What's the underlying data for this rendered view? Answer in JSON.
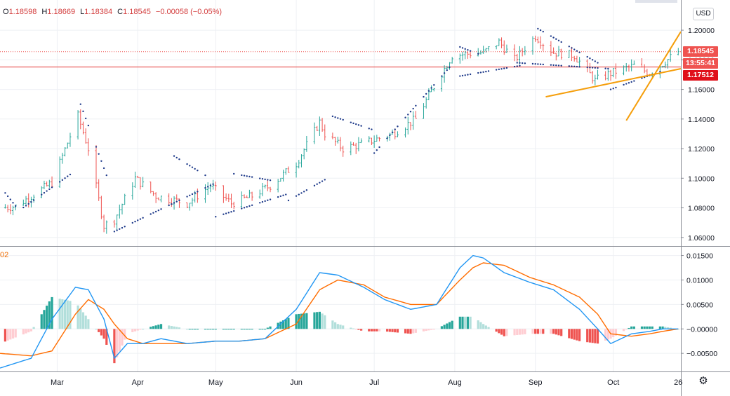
{
  "ohlc": {
    "open_label": "O",
    "open": "1.18598",
    "high_label": "H",
    "high": "1.18669",
    "low_label": "L",
    "low": "1.18384",
    "close_label": "C",
    "close": "1.18545",
    "change": "−0.00058 (−0.05%)"
  },
  "currency_button": "USD",
  "macd_pane_label": "02",
  "price_scale": {
    "ticks": [
      "1.20000",
      "1.18000",
      "1.16000",
      "1.14000",
      "1.12000",
      "1.10000",
      "1.08000",
      "1.06000"
    ],
    "tick_values": [
      1.2,
      1.18,
      1.16,
      1.14,
      1.12,
      1.1,
      1.08,
      1.06
    ],
    "ylim": [
      1.0547,
      1.2166
    ]
  },
  "price_tags": {
    "last_price": "1.18545",
    "countdown": "13:55:41",
    "horizontal_line": "1.17512"
  },
  "macd_scale": {
    "ticks": [
      "0.01500",
      "0.01000",
      "0.00500",
      "−0.00000",
      "−0.00500"
    ],
    "tick_values": [
      0.015,
      0.01,
      0.005,
      0.0,
      -0.005
    ],
    "ylim": [
      -0.0087,
      0.0168
    ]
  },
  "time_axis": {
    "labels": [
      "Mar",
      "Apr",
      "May",
      "Jun",
      "Jul",
      "Aug",
      "Sep",
      "Oct",
      "26"
    ],
    "label_dates": [
      "2020-03-01",
      "2020-04-01",
      "2020-05-01",
      "2020-06-01",
      "2020-07-01",
      "2020-08-01",
      "2020-09-01",
      "2020-10-01",
      "2020-10-26"
    ],
    "xlim": [
      "2020-02-08",
      "2020-10-27"
    ]
  },
  "colors": {
    "up": "#26a69a",
    "down": "#ef5350",
    "macd_line": "#2196f3",
    "signal_line": "#ff6d00",
    "sar": "#1e3a8a",
    "trendline": "#f59e0b",
    "hline": "#e53935",
    "hist_up_strong": "#26a69a",
    "hist_up_weak": "#b2dfdb",
    "hist_down_strong": "#ef5350",
    "hist_down_weak": "#ffcdd2"
  },
  "chart_data": {
    "type": "candlestick",
    "instrument_quote": "USD",
    "series": [
      {
        "name": "price_path",
        "x": [
          "2020-02-08",
          "2020-02-14",
          "2020-02-20",
          "2020-02-28",
          "2020-03-09",
          "2020-03-13",
          "2020-03-19",
          "2020-03-23",
          "2020-03-31",
          "2020-04-08",
          "2020-04-20",
          "2020-04-29",
          "2020-05-07",
          "2020-05-15",
          "2020-05-22",
          "2020-06-01",
          "2020-06-10",
          "2020-06-12",
          "2020-06-19",
          "2020-06-26",
          "2020-07-08",
          "2020-07-17",
          "2020-07-24",
          "2020-07-31",
          "2020-08-12",
          "2020-08-18",
          "2020-08-24",
          "2020-09-01",
          "2020-09-08",
          "2020-09-16",
          "2020-09-24",
          "2020-09-30",
          "2020-10-09",
          "2020-10-15",
          "2020-10-26"
        ],
        "values": [
          1.08,
          1.081,
          1.088,
          1.097,
          1.142,
          1.12,
          1.068,
          1.072,
          1.1,
          1.088,
          1.083,
          1.095,
          1.083,
          1.088,
          1.095,
          1.11,
          1.138,
          1.13,
          1.12,
          1.123,
          1.13,
          1.14,
          1.162,
          1.183,
          1.185,
          1.192,
          1.18,
          1.196,
          1.185,
          1.183,
          1.166,
          1.171,
          1.176,
          1.171,
          1.1855
        ]
      }
    ],
    "sar_segments": [
      {
        "x": [
          "2020-02-08",
          "2020-02-15"
        ],
        "values": [
          1.0945,
          1.079
        ]
      },
      {
        "x": [
          "2020-02-16",
          "2020-03-08"
        ],
        "values": [
          1.079,
          1.105
        ]
      },
      {
        "x": [
          "2020-03-10",
          "2020-03-20"
        ],
        "values": [
          1.15,
          1.102
        ]
      },
      {
        "x": [
          "2020-03-23",
          "2020-04-30"
        ],
        "values": [
          1.064,
          1.096
        ]
      },
      {
        "x": [
          "2020-04-15",
          "2020-04-27"
        ],
        "values": [
          1.115,
          1.102
        ]
      },
      {
        "x": [
          "2020-05-01",
          "2020-05-28"
        ],
        "values": [
          1.074,
          1.089
        ]
      },
      {
        "x": [
          "2020-05-08",
          "2020-05-24"
        ],
        "values": [
          1.103,
          1.098
        ]
      },
      {
        "x": [
          "2020-05-29",
          "2020-06-13"
        ],
        "values": [
          1.085,
          1.1
        ]
      },
      {
        "x": [
          "2020-06-13",
          "2020-06-30"
        ],
        "values": [
          1.143,
          1.133
        ]
      },
      {
        "x": [
          "2020-07-01",
          "2020-07-30"
        ],
        "values": [
          1.117,
          1.175
        ]
      },
      {
        "x": [
          "2020-08-01",
          "2020-08-10"
        ],
        "values": [
          1.19,
          1.184
        ]
      },
      {
        "x": [
          "2020-08-03",
          "2020-08-26"
        ],
        "values": [
          1.169,
          1.176
        ]
      },
      {
        "x": [
          "2020-08-25",
          "2020-09-29"
        ],
        "values": [
          1.178,
          1.174
        ]
      },
      {
        "x": [
          "2020-09-02",
          "2020-09-25"
        ],
        "values": [
          1.201,
          1.178
        ]
      },
      {
        "x": [
          "2020-09-30",
          "2020-10-19"
        ],
        "values": [
          1.16,
          1.172
        ]
      }
    ],
    "trendlines": [
      {
        "x": [
          "2020-09-05",
          "2020-10-27"
        ],
        "values": [
          1.155,
          1.174
        ]
      },
      {
        "x": [
          "2020-10-06",
          "2020-10-27"
        ],
        "values": [
          1.139,
          1.199
        ]
      }
    ],
    "horizontal_lines": [
      1.17512
    ],
    "last_price": 1.18545,
    "macd": {
      "x": [
        "2020-02-08",
        "2020-02-20",
        "2020-02-28",
        "2020-03-08",
        "2020-03-13",
        "2020-03-19",
        "2020-03-23",
        "2020-03-28",
        "2020-04-03",
        "2020-04-10",
        "2020-04-20",
        "2020-05-01",
        "2020-05-10",
        "2020-05-20",
        "2020-06-01",
        "2020-06-10",
        "2020-06-17",
        "2020-06-27",
        "2020-07-05",
        "2020-07-15",
        "2020-07-25",
        "2020-08-03",
        "2020-08-08",
        "2020-08-12",
        "2020-08-20",
        "2020-08-30",
        "2020-09-08",
        "2020-09-18",
        "2020-09-25",
        "2020-09-30",
        "2020-10-08",
        "2020-10-15",
        "2020-10-20",
        "2020-10-26"
      ],
      "macd_line": [
        -0.008,
        -0.006,
        0.002,
        0.0085,
        0.008,
        0.002,
        -0.006,
        -0.003,
        -0.003,
        -0.002,
        -0.003,
        -0.0025,
        -0.0025,
        -0.002,
        0.004,
        0.0115,
        0.011,
        0.0085,
        0.006,
        0.004,
        0.005,
        0.0125,
        0.015,
        0.0145,
        0.0115,
        0.0095,
        0.008,
        0.004,
        0.0,
        -0.003,
        -0.001,
        -0.0005,
        0.0,
        0.0
      ],
      "signal_line": [
        -0.005,
        -0.0055,
        -0.0045,
        0.003,
        0.006,
        0.004,
        0.001,
        -0.002,
        -0.003,
        -0.003,
        -0.003,
        -0.0025,
        -0.0025,
        -0.002,
        0.001,
        0.008,
        0.01,
        0.009,
        0.0065,
        0.005,
        0.005,
        0.01,
        0.0125,
        0.0135,
        0.013,
        0.0105,
        0.009,
        0.0065,
        0.003,
        -0.001,
        -0.0015,
        -0.001,
        -0.0005,
        0.0
      ]
    }
  }
}
